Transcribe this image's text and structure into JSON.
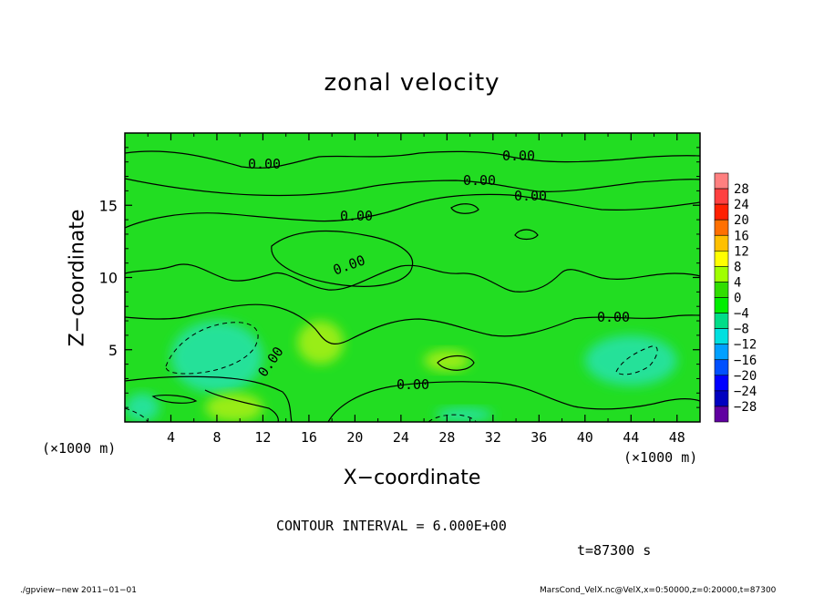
{
  "chart_data": {
    "type": "heatmap",
    "title": "zonal velocity",
    "xlabel": "X−coordinate",
    "ylabel": "Z−coordinate",
    "x_unit_left": "(×1000 m)",
    "x_unit_right": "(×1000 m)",
    "xlim": [
      0,
      50
    ],
    "ylim": [
      0,
      20
    ],
    "x_ticks": [
      "4",
      "8",
      "12",
      "16",
      "20",
      "24",
      "28",
      "32",
      "36",
      "40",
      "44",
      "48"
    ],
    "y_ticks": [
      "5",
      "10",
      "15"
    ],
    "contour_label": "0.00",
    "contour_interval_text": "CONTOUR INTERVAL = 6.000E+00",
    "time_text": "t=87300 s",
    "colorbar": {
      "levels": [
        "28",
        "24",
        "20",
        "16",
        "12",
        "8",
        "4",
        "0",
        "−4",
        "−8",
        "−12",
        "−16",
        "−20",
        "−24",
        "−28"
      ],
      "colors": [
        "#ff8080",
        "#ff4040",
        "#ff2000",
        "#ff7000",
        "#ffc000",
        "#ffff00",
        "#a0ff00",
        "#30dd00",
        "#00ee00",
        "#00dd88",
        "#00e0e0",
        "#00a0ff",
        "#0050ff",
        "#0000ff",
        "#0000c0",
        "#6000a0"
      ]
    },
    "regions": [
      {
        "kind": "ambient",
        "value": 0,
        "x": [
          0,
          50
        ],
        "z": [
          0,
          20
        ]
      },
      {
        "kind": "negative",
        "value": -8,
        "x": [
          4,
          12
        ],
        "z": [
          2,
          7
        ]
      },
      {
        "kind": "negative",
        "value": -8,
        "x": [
          40,
          48
        ],
        "z": [
          2.5,
          6
        ]
      },
      {
        "kind": "negative",
        "value": -6,
        "x": [
          0,
          3
        ],
        "z": [
          0,
          2
        ]
      },
      {
        "kind": "negative",
        "value": -6,
        "x": [
          27,
          32
        ],
        "z": [
          0,
          1
        ]
      },
      {
        "kind": "positive",
        "value": 6,
        "x": [
          7,
          12
        ],
        "z": [
          0,
          2
        ]
      },
      {
        "kind": "positive",
        "value": 4,
        "x": [
          26,
          30
        ],
        "z": [
          3.5,
          5
        ]
      },
      {
        "kind": "positive",
        "value": 4,
        "x": [
          15,
          19
        ],
        "z": [
          4,
          7
        ]
      }
    ]
  },
  "footer": {
    "left": "./gpview−new   2011−01−01",
    "right": "MarsCond_VelX.nc@VelX,x=0:50000,z=0:20000,t=87300"
  }
}
